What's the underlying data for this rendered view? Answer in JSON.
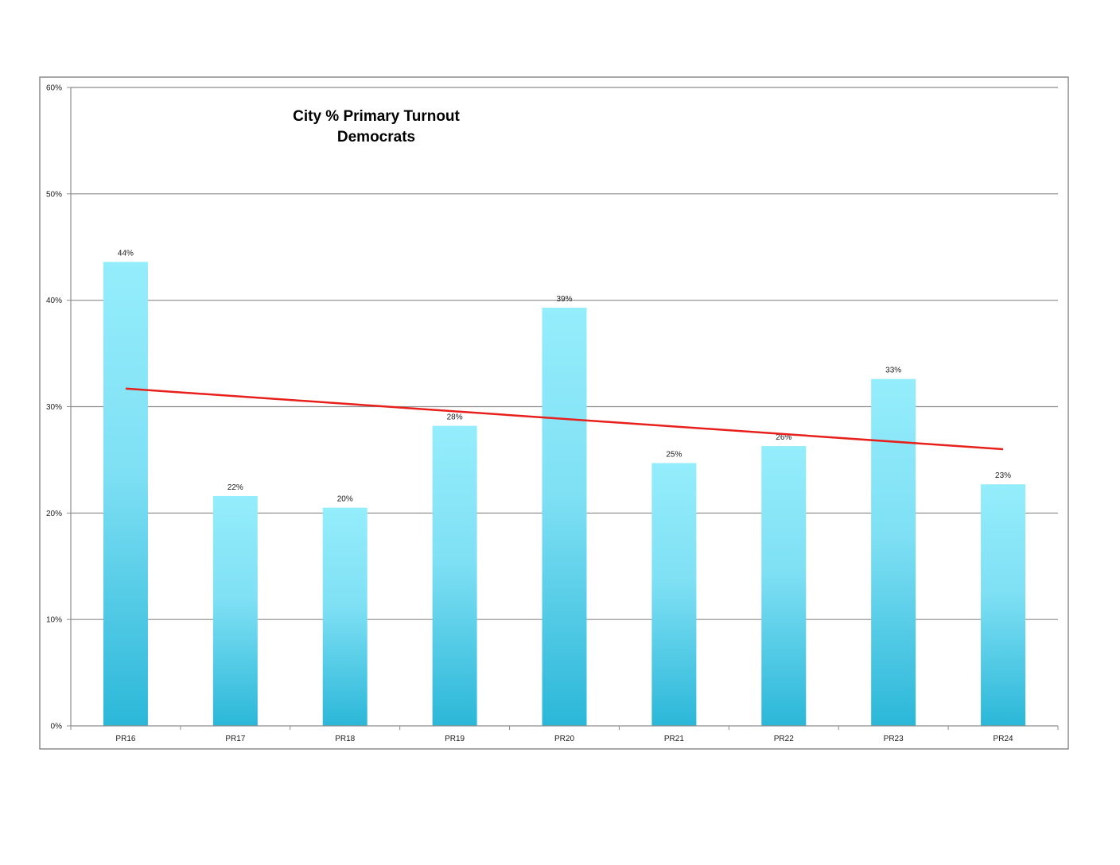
{
  "chart_data": {
    "type": "bar",
    "title": "City % Primary Turnout",
    "subtitle": "Democrats",
    "xlabel": "",
    "ylabel": "",
    "categories": [
      "PR16",
      "PR17",
      "PR18",
      "PR19",
      "PR20",
      "PR21",
      "PR22",
      "PR23",
      "PR24"
    ],
    "values": [
      0.436,
      0.216,
      0.205,
      0.282,
      0.393,
      0.247,
      0.263,
      0.326,
      0.227
    ],
    "data_labels": [
      "44%",
      "22%",
      "20%",
      "28%",
      "39%",
      "25%",
      "26%",
      "33%",
      "23%"
    ],
    "ylim": [
      0,
      0.6
    ],
    "yticks": [
      0,
      0.1,
      0.2,
      0.3,
      0.4,
      0.5,
      0.6
    ],
    "ytick_labels": [
      "0%",
      "10%",
      "20%",
      "30%",
      "40%",
      "50%",
      "60%"
    ],
    "grid": true,
    "legend": "none",
    "trendline": {
      "type": "linear",
      "start": 0.317,
      "end": 0.26,
      "color": "#e8201c"
    },
    "colors": {
      "bar_top": "#94edfb",
      "bar_bottom": "#2bb7d8",
      "frame": "#8c8c8c",
      "grid": "#8c8c8c"
    }
  }
}
